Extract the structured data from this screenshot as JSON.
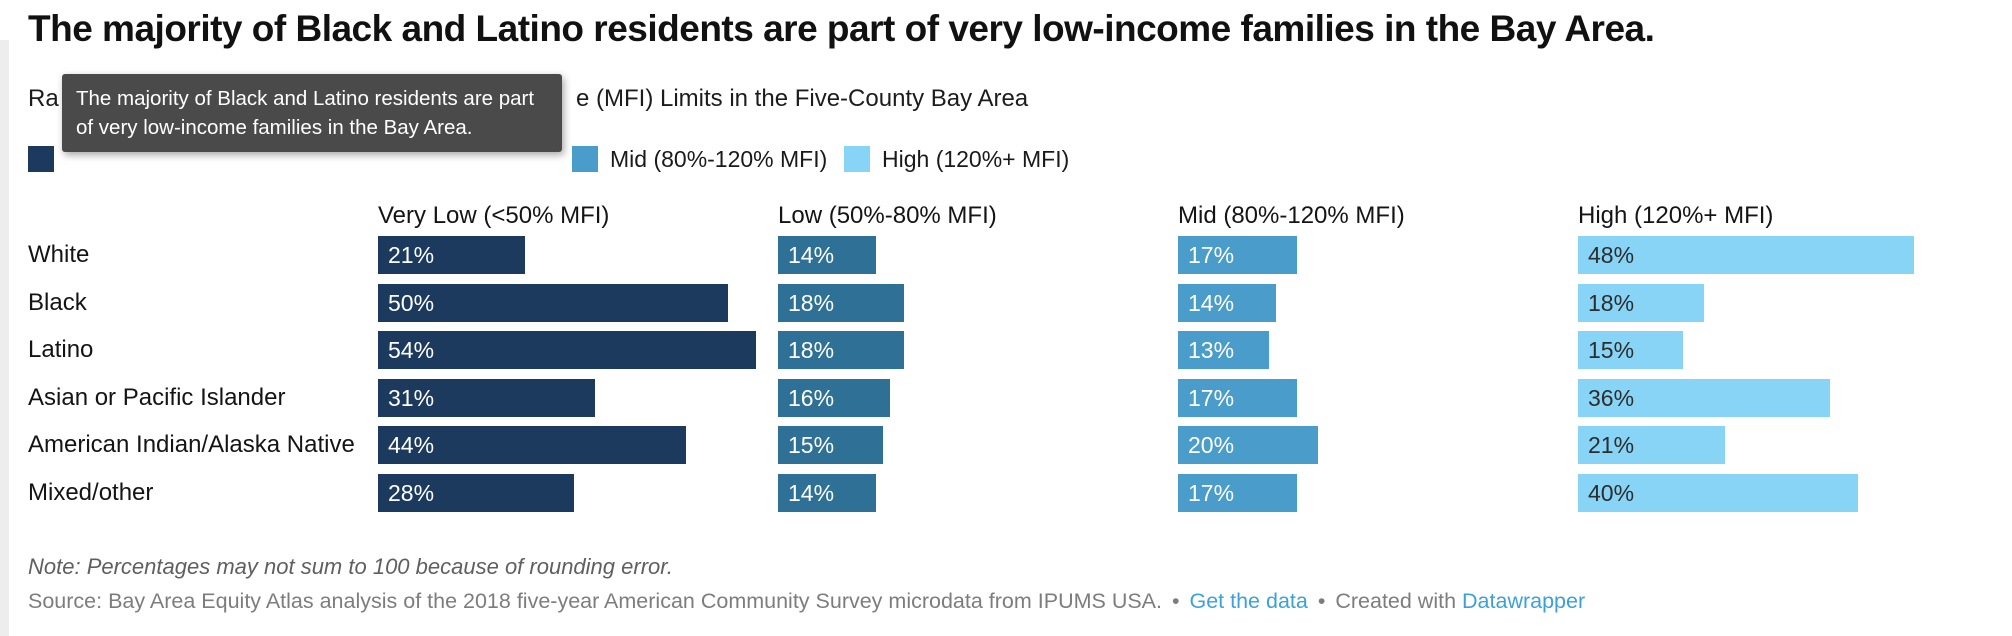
{
  "title": "The majority of Black and Latino residents are part of very low-income families in the Bay Area.",
  "subtitle": {
    "visible_prefix": "Ra",
    "visible_suffix": "e (MFI) Limits in the Five-County Bay Area"
  },
  "tooltip": {
    "text": "The majority of Black and Latino residents are part of very low-income families in the Bay Area.",
    "bg": "#4a4a4a",
    "text_color": "#ffffff"
  },
  "legend": {
    "items": [
      {
        "label": "",
        "color": "#1b3a5e"
      },
      {
        "label": "Mid (80%-120% MFI)",
        "color": "#4a9dca"
      },
      {
        "label": "High (120%+ MFI)",
        "color": "#87d4f6"
      }
    ]
  },
  "chart_data": {
    "type": "bar",
    "variant": "horizontal split bars (small multiples per income bracket)",
    "categories": [
      "White",
      "Black",
      "Latino",
      "Asian or Pacific Islander",
      "American Indian/Alaska Native",
      "Mixed/other"
    ],
    "series": [
      {
        "name": "Very Low (<50% MFI)",
        "color": "#1b3a5e",
        "label_color": "#ffffff",
        "values": [
          21,
          50,
          54,
          31,
          44,
          28
        ]
      },
      {
        "name": "Low (50%-80% MFI)",
        "color": "#2f7096",
        "label_color": "#ffffff",
        "values": [
          14,
          18,
          18,
          16,
          15,
          14
        ]
      },
      {
        "name": "Mid (80%-120% MFI)",
        "color": "#4a9dca",
        "label_color": "#ffffff",
        "values": [
          17,
          14,
          13,
          17,
          20,
          17
        ]
      },
      {
        "name": "High (120%+ MFI)",
        "color": "#87d4f6",
        "label_color": "#2d2d2d",
        "values": [
          48,
          18,
          15,
          36,
          21,
          40
        ]
      }
    ],
    "value_suffix": "%",
    "xlim": [
      0,
      57
    ],
    "grid": false,
    "legend_position": "top"
  },
  "footer": {
    "note": "Note: Percentages may not sum to 100 because of rounding error.",
    "source": "Source: Bay Area Equity Atlas analysis of the 2018 five-year American Community Survey microdata from IPUMS USA.",
    "bullet": "•",
    "get_data_label": "Get the data",
    "created_with": "Created with",
    "datawrapper_label": "Datawrapper",
    "link_color": "#3ba2d9"
  }
}
